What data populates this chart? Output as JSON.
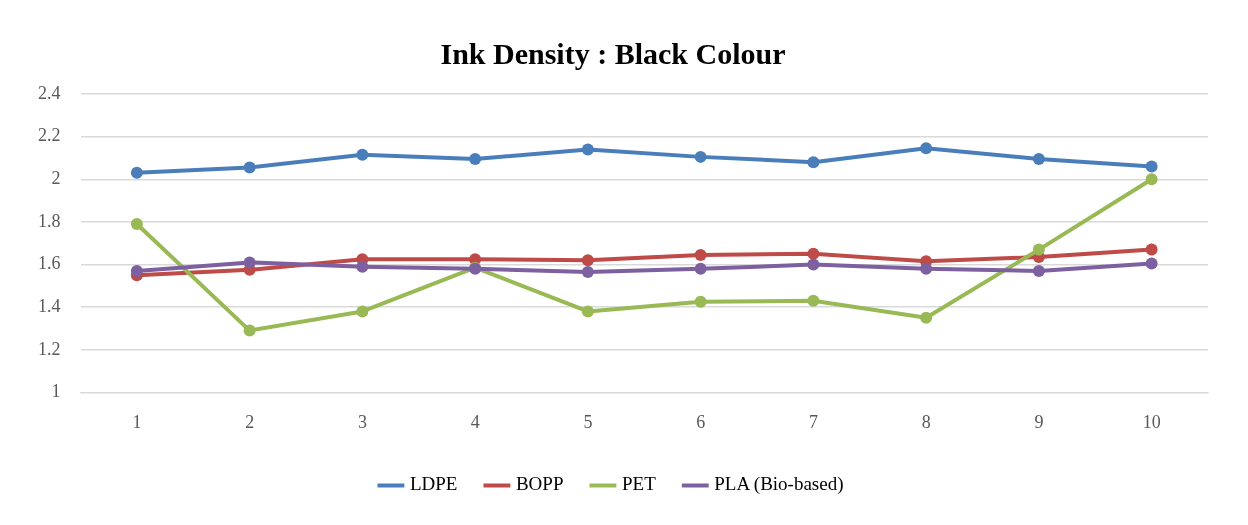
{
  "chart_data": {
    "type": "line",
    "title": "Ink Density : Black Colour",
    "categories": [
      "1",
      "2",
      "3",
      "4",
      "5",
      "6",
      "7",
      "8",
      "9",
      "10"
    ],
    "series": [
      {
        "name": "LDPE",
        "color": "#4a7ebb",
        "values": [
          2.03,
          2.055,
          2.115,
          2.095,
          2.14,
          2.105,
          2.08,
          2.145,
          2.095,
          2.06
        ]
      },
      {
        "name": "BOPP",
        "color": "#be4b48",
        "values": [
          1.55,
          1.575,
          1.625,
          1.625,
          1.62,
          1.645,
          1.65,
          1.615,
          1.635,
          1.67
        ]
      },
      {
        "name": "PET",
        "color": "#98b954",
        "values": [
          1.79,
          1.29,
          1.38,
          1.585,
          1.38,
          1.425,
          1.43,
          1.35,
          1.67,
          2.0
        ]
      },
      {
        "name": "PLA (Bio-based)",
        "color": "#7d60a0",
        "values": [
          1.57,
          1.61,
          1.59,
          1.58,
          1.565,
          1.58,
          1.6,
          1.58,
          1.57,
          1.605
        ]
      }
    ],
    "ylim": [
      1,
      2.4
    ],
    "yticks": [
      1,
      1.2,
      1.4,
      1.6,
      1.8,
      2,
      2.2,
      2.4
    ],
    "grid": "y",
    "legend": "bottom",
    "marker": "circle",
    "line_style": "solid"
  }
}
